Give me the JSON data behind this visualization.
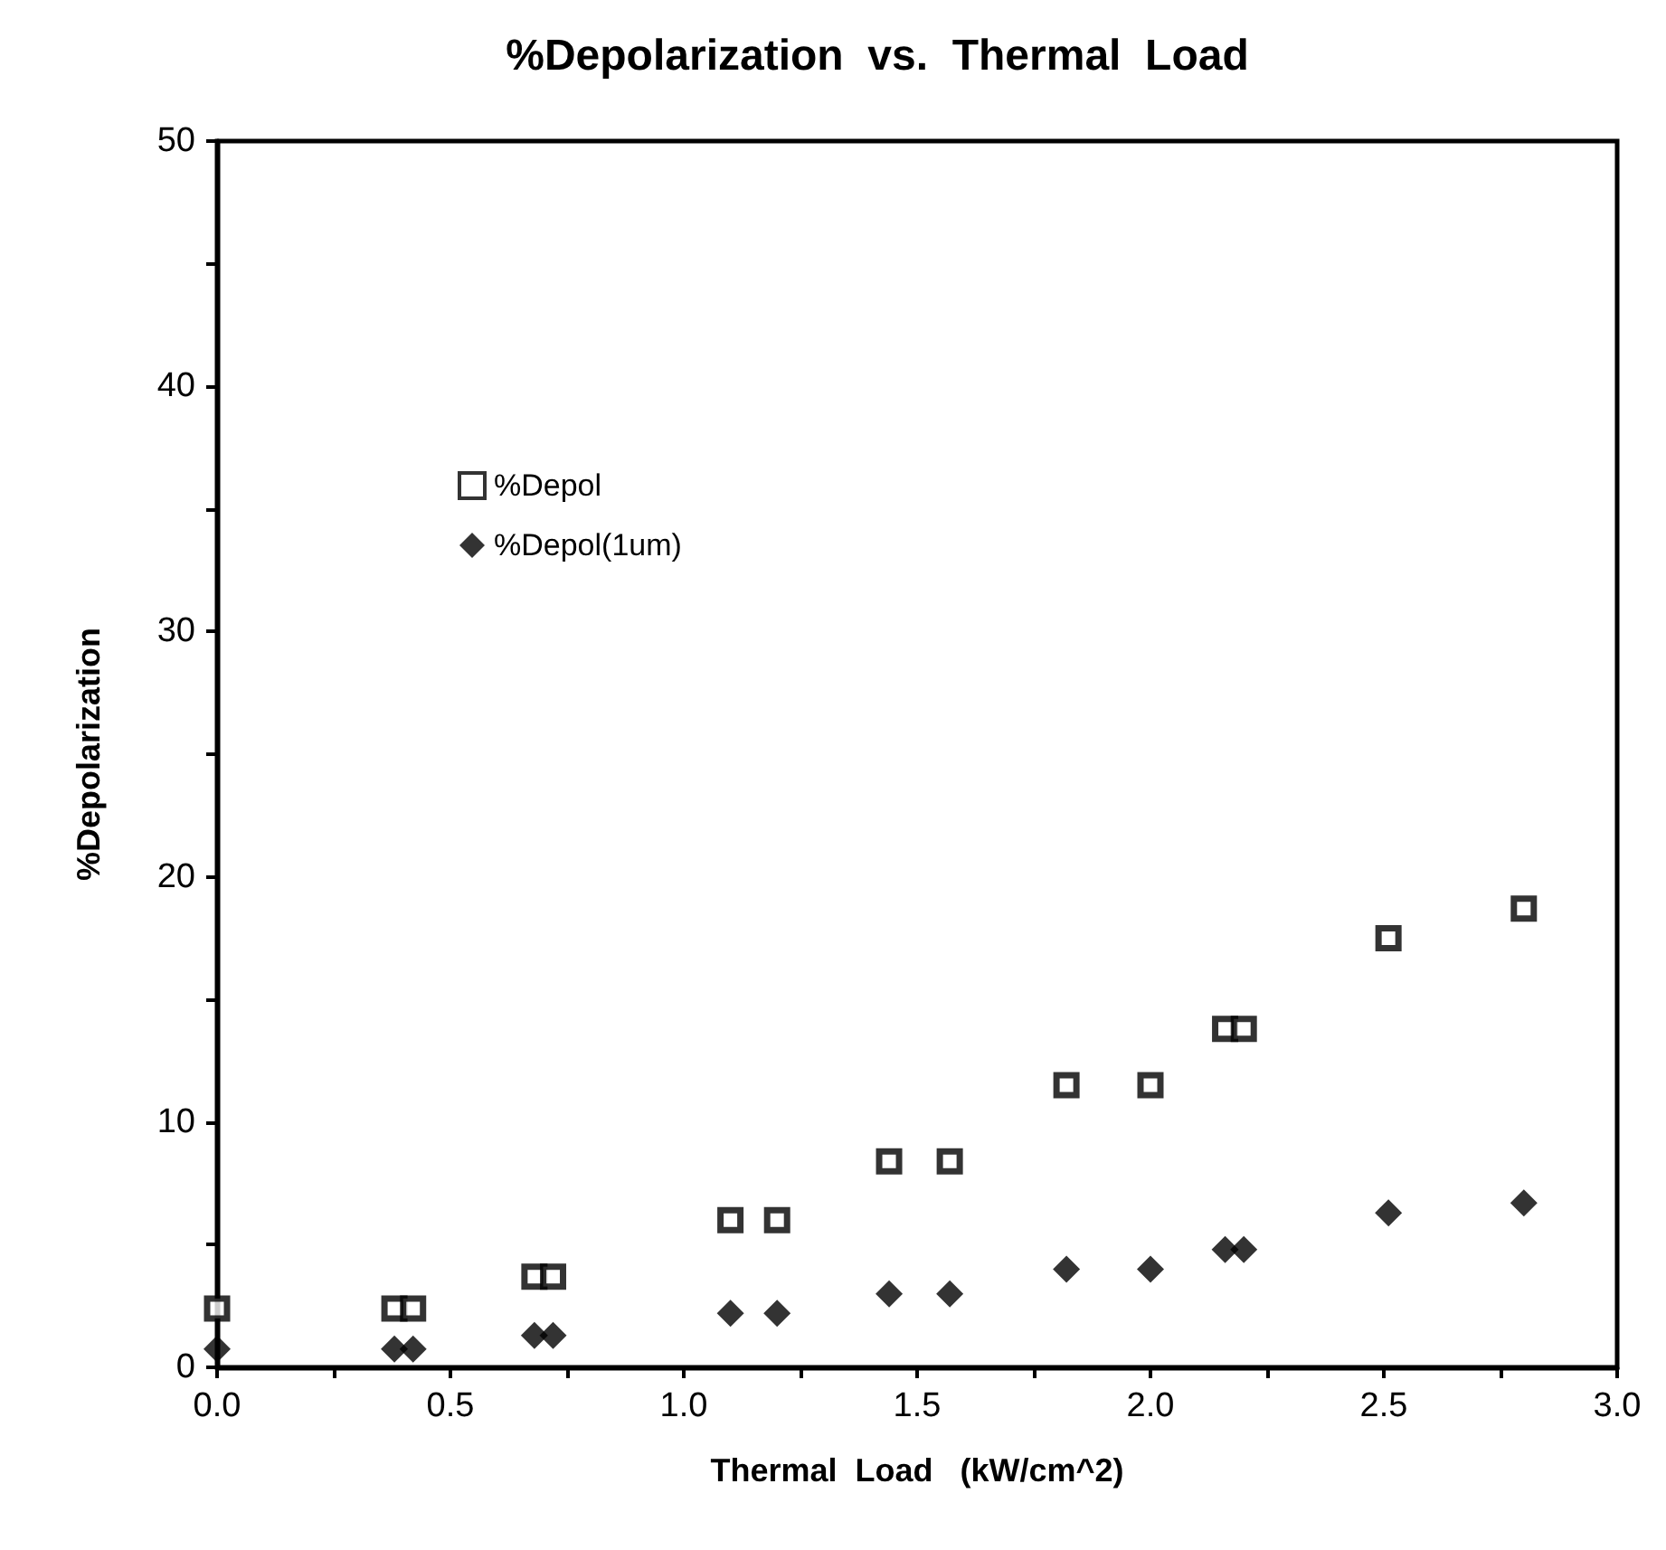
{
  "chart_data": {
    "type": "scatter",
    "title": "%Depolarization  vs.  Thermal  Load",
    "xlabel": "Thermal  Load   (kW/cm^2)",
    "ylabel": "%Depolarization",
    "xlim": [
      0,
      3
    ],
    "ylim": [
      0,
      50
    ],
    "xticks": [
      {
        "value": 0,
        "label": "0.0"
      },
      {
        "value": 0.25,
        "label": null
      },
      {
        "value": 0.5,
        "label": "0.5"
      },
      {
        "value": 0.75,
        "label": null
      },
      {
        "value": 1,
        "label": "1.0"
      },
      {
        "value": 1.25,
        "label": null
      },
      {
        "value": 1.5,
        "label": "1.5"
      },
      {
        "value": 1.75,
        "label": null
      },
      {
        "value": 2,
        "label": "2.0"
      },
      {
        "value": 2.25,
        "label": null
      },
      {
        "value": 2.5,
        "label": "2.5"
      },
      {
        "value": 2.75,
        "label": null
      },
      {
        "value": 3,
        "label": "3.0"
      }
    ],
    "yticks": [
      0,
      {
        "value": 5,
        "label": null
      },
      10,
      {
        "value": 15,
        "label": null
      },
      20,
      {
        "value": 25,
        "label": null
      },
      30,
      {
        "value": 35,
        "label": null
      },
      40,
      {
        "value": 45,
        "label": null
      },
      50
    ],
    "grid": false,
    "legend": "top left",
    "series": [
      {
        "name": "%Depol",
        "color": "#000000",
        "marker": "square",
        "x": [
          0,
          0.38,
          0.42,
          0.68,
          0.72,
          1.1,
          1.2,
          1.44,
          1.57,
          1.82,
          2.0,
          2.16,
          2.2,
          2.51,
          2.8
        ],
        "values": [
          2.4,
          2.4,
          2.4,
          3.7,
          3.7,
          6.0,
          6.0,
          8.4,
          8.4,
          11.5,
          11.5,
          13.8,
          13.8,
          17.5,
          18.7
        ]
      },
      {
        "name": "%Depol(1um)",
        "color": "#000000",
        "marker": "diamond",
        "x": [
          0,
          0.38,
          0.42,
          0.68,
          0.72,
          1.1,
          1.2,
          1.44,
          1.57,
          1.82,
          2.0,
          2.16,
          2.2,
          2.51,
          2.8
        ],
        "values": [
          0.75,
          0.75,
          0.75,
          1.3,
          1.3,
          2.2,
          2.2,
          3.0,
          3.0,
          4.0,
          4.0,
          4.8,
          4.8,
          6.3,
          6.7
        ]
      }
    ]
  }
}
